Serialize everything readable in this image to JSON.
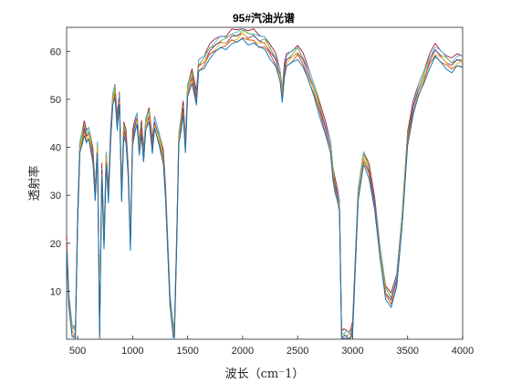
{
  "chart_data": {
    "type": "line",
    "title": "95#汽油光谱",
    "xlabel": "波长（cm⁻1）",
    "ylabel": "透射率",
    "xlim": [
      400,
      4000
    ],
    "ylim": [
      0,
      65
    ],
    "xticks": [
      500,
      1000,
      1500,
      2000,
      2500,
      3000,
      3500,
      4000
    ],
    "yticks": [
      10,
      20,
      30,
      40,
      50,
      60
    ],
    "grid": false,
    "box": true,
    "series_colors": [
      "#0072BD",
      "#D95319",
      "#EDB120",
      "#7E2F8E",
      "#77AC30",
      "#4DBEEE",
      "#A2142F"
    ],
    "series_count": 7,
    "series_note_values": "overlapping spectra; representative curve values below",
    "x": [
      400,
      420,
      450,
      480,
      500,
      520,
      540,
      560,
      580,
      600,
      620,
      640,
      660,
      680,
      700,
      720,
      740,
      760,
      780,
      800,
      820,
      840,
      860,
      880,
      900,
      920,
      940,
      960,
      980,
      1000,
      1020,
      1040,
      1060,
      1080,
      1100,
      1120,
      1150,
      1180,
      1200,
      1240,
      1280,
      1300,
      1340,
      1370,
      1380,
      1400,
      1420,
      1440,
      1460,
      1480,
      1500,
      1540,
      1580,
      1600,
      1650,
      1700,
      1750,
      1800,
      1850,
      1900,
      1950,
      2000,
      2050,
      2100,
      2150,
      2200,
      2250,
      2300,
      2340,
      2360,
      2380,
      2400,
      2450,
      2500,
      2550,
      2600,
      2650,
      2700,
      2750,
      2800,
      2820,
      2840,
      2860,
      2880,
      2900,
      2920,
      2940,
      2960,
      2980,
      3000,
      3050,
      3100,
      3150,
      3200,
      3250,
      3300,
      3350,
      3400,
      3450,
      3500,
      3550,
      3600,
      3650,
      3700,
      3750,
      3800,
      3850,
      3900,
      3950,
      4000
    ],
    "y": [
      20,
      8,
      2,
      1,
      25,
      40,
      42,
      44,
      42,
      43,
      41,
      38,
      30,
      40,
      1,
      35,
      20,
      38,
      30,
      42,
      50,
      52,
      45,
      50,
      30,
      44,
      42,
      35,
      20,
      42,
      44,
      46,
      40,
      44,
      38,
      45,
      47,
      40,
      45,
      42,
      38,
      30,
      8,
      2,
      1,
      20,
      42,
      45,
      48,
      40,
      52,
      55,
      50,
      57,
      58,
      60,
      61,
      62,
      62,
      63,
      63,
      64,
      63,
      63,
      62,
      62,
      60,
      58,
      55,
      51,
      56,
      58,
      59,
      60,
      58,
      55,
      52,
      48,
      44,
      40,
      35,
      32,
      30,
      28,
      0.5,
      0.5,
      0.5,
      0.5,
      0.5,
      2,
      30,
      38,
      35,
      28,
      18,
      10,
      8,
      12,
      25,
      42,
      48,
      52,
      55,
      58,
      60,
      59,
      58,
      57,
      58,
      58
    ]
  }
}
